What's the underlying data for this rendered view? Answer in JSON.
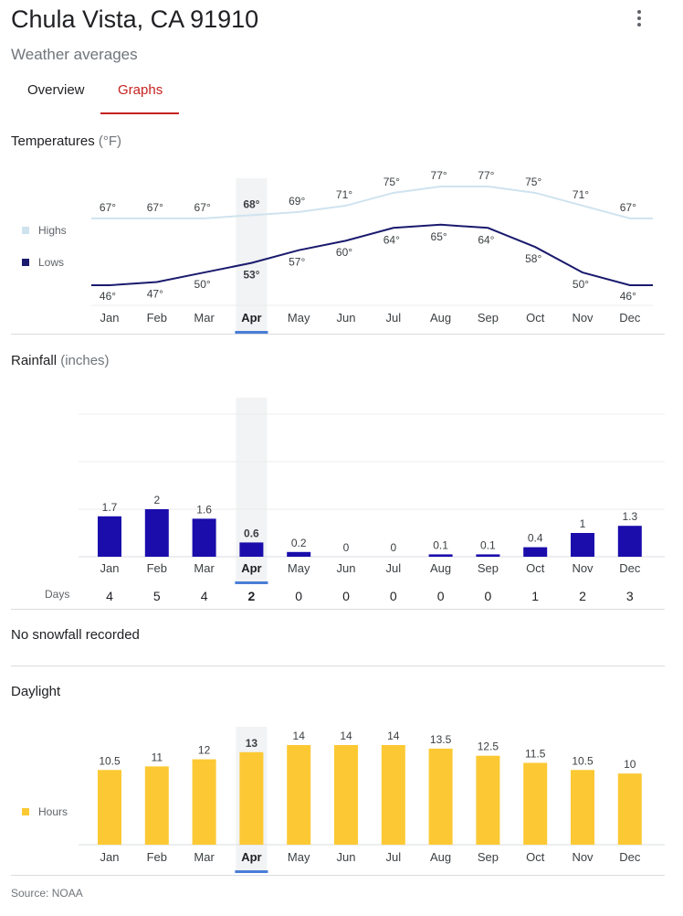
{
  "header": {
    "title": "Chula Vista, CA 91910",
    "subtitle": "Weather averages"
  },
  "tabs": [
    {
      "label": "Overview",
      "selected": false
    },
    {
      "label": "Graphs",
      "selected": true
    }
  ],
  "months": [
    "Jan",
    "Feb",
    "Mar",
    "Apr",
    "May",
    "Jun",
    "Jul",
    "Aug",
    "Sep",
    "Oct",
    "Nov",
    "Dec"
  ],
  "selected_month": "Apr",
  "temperatures": {
    "title": "Temperatures",
    "unit": "(°F)",
    "highs_label": "Highs",
    "lows_label": "Lows"
  },
  "rainfall": {
    "title": "Rainfall",
    "unit": "(inches)",
    "days_label": "Days"
  },
  "snowfall_note": "No snowfall recorded",
  "daylight": {
    "title": "Daylight",
    "hours_label": "Hours"
  },
  "source": "Source: NOAA",
  "colors": {
    "highs": "#cfe3ef",
    "lows": "#1a1a6e",
    "rain": "#1a0dab",
    "daylight": "#fcc934",
    "selected_band": "#f1f3f4",
    "selected_bar": "#4a7ed6",
    "tab_active": "#c5221f"
  },
  "chart_data": [
    {
      "type": "line",
      "title": "Temperatures (°F)",
      "categories": [
        "Jan",
        "Feb",
        "Mar",
        "Apr",
        "May",
        "Jun",
        "Jul",
        "Aug",
        "Sep",
        "Oct",
        "Nov",
        "Dec"
      ],
      "series": [
        {
          "name": "Highs",
          "values": [
            67,
            67,
            67,
            68,
            69,
            71,
            75,
            77,
            77,
            75,
            71,
            67
          ]
        },
        {
          "name": "Lows",
          "values": [
            46,
            47,
            50,
            53,
            57,
            60,
            64,
            65,
            64,
            58,
            50,
            46
          ]
        }
      ]
    },
    {
      "type": "bar",
      "title": "Rainfall (inches)",
      "categories": [
        "Jan",
        "Feb",
        "Mar",
        "Apr",
        "May",
        "Jun",
        "Jul",
        "Aug",
        "Sep",
        "Oct",
        "Nov",
        "Dec"
      ],
      "values": [
        1.7,
        2,
        1.6,
        0.6,
        0.2,
        0,
        0,
        0.1,
        0.1,
        0.4,
        1,
        1.3
      ],
      "ylim": [
        0,
        6
      ],
      "days": [
        4,
        5,
        4,
        2,
        0,
        0,
        0,
        0,
        0,
        1,
        2,
        3
      ]
    },
    {
      "type": "bar",
      "title": "Daylight",
      "series_name": "Hours",
      "categories": [
        "Jan",
        "Feb",
        "Mar",
        "Apr",
        "May",
        "Jun",
        "Jul",
        "Aug",
        "Sep",
        "Oct",
        "Nov",
        "Dec"
      ],
      "values": [
        10.5,
        11,
        12,
        13,
        14,
        14,
        14,
        13.5,
        12.5,
        11.5,
        10.5,
        10
      ]
    }
  ]
}
